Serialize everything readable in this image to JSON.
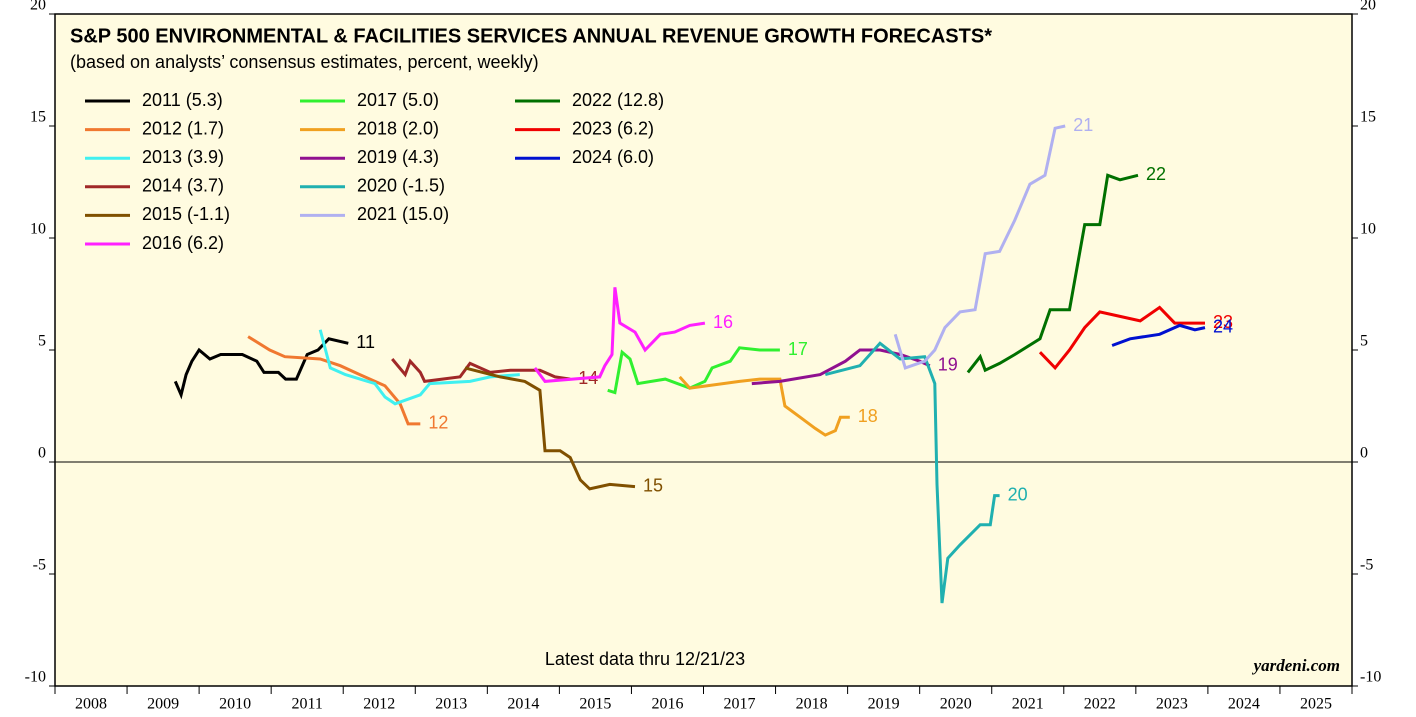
{
  "chart_data": {
    "type": "line",
    "title": "S&P 500 ENVIRONMENTAL & FACILITIES SERVICES ANNUAL REVENUE GROWTH FORECASTS*",
    "subtitle": "(based on analysts’ consensus estimates, percent, weekly)",
    "annotation": "Latest data thru 12/21/23",
    "source": "yardeni.com",
    "year_labels": [
      "2008",
      "2009",
      "2010",
      "2011",
      "2012",
      "2013",
      "2014",
      "2015",
      "2016",
      "2017",
      "2018",
      "2019",
      "2020",
      "2021",
      "2022",
      "2023",
      "2024",
      "2025"
    ],
    "xlim": [
      2008,
      2026
    ],
    "ylim": [
      -10,
      20
    ],
    "yticks": [
      -10,
      -5,
      0,
      5,
      10,
      15,
      20
    ],
    "series": [
      {
        "name": "2011 (5.3)",
        "end_label": "11",
        "color": "#000000",
        "x": [
          2009.67,
          2009.75,
          2009.82,
          2009.9,
          2010.0,
          2010.15,
          2010.3,
          2010.6,
          2010.8,
          2010.9,
          2011.1,
          2011.2,
          2011.35,
          2011.5,
          2011.65,
          2011.8,
          2012.07
        ],
        "values": [
          3.6,
          3.0,
          3.9,
          4.5,
          5.0,
          4.6,
          4.8,
          4.8,
          4.5,
          4.0,
          4.0,
          3.7,
          3.7,
          4.8,
          5.0,
          5.5,
          5.3
        ]
      },
      {
        "name": "2012 (1.7)",
        "end_label": "12",
        "color": "#f07830",
        "x": [
          2010.68,
          2010.98,
          2011.19,
          2011.68,
          2011.96,
          2012.23,
          2012.58,
          2012.79,
          2012.9,
          2013.07
        ],
        "values": [
          5.6,
          5.0,
          4.7,
          4.6,
          4.3,
          3.9,
          3.4,
          2.6,
          1.7,
          1.7
        ]
      },
      {
        "name": "2013 (3.9)",
        "color": "#40f0f0",
        "x": [
          2011.68,
          2011.82,
          2012.03,
          2012.44,
          2012.58,
          2012.72,
          2013.07,
          2013.2,
          2013.76,
          2014.04,
          2014.45
        ],
        "values": [
          5.9,
          4.2,
          3.9,
          3.5,
          2.9,
          2.6,
          3.0,
          3.5,
          3.6,
          3.8,
          3.9
        ]
      },
      {
        "name": "2014 (3.7)",
        "end_label": "14",
        "color": "#a02828",
        "x": [
          2012.68,
          2012.86,
          2012.93,
          2013.07,
          2013.13,
          2013.62,
          2013.76,
          2014.04,
          2014.32,
          2014.73,
          2014.94,
          2015.15
        ],
        "values": [
          4.6,
          3.9,
          4.5,
          4.0,
          3.6,
          3.8,
          4.4,
          4.0,
          4.1,
          4.1,
          3.8,
          3.7
        ]
      },
      {
        "name": "2015 (-1.1)",
        "end_label": "15",
        "color": "#805000",
        "x": [
          2013.69,
          2014.18,
          2014.52,
          2014.73,
          2014.8,
          2015.01,
          2015.15,
          2015.29,
          2015.42,
          2015.7,
          2016.05
        ],
        "values": [
          4.2,
          3.8,
          3.6,
          3.2,
          0.5,
          0.5,
          0.2,
          -0.8,
          -1.2,
          -1.0,
          -1.1
        ]
      },
      {
        "name": "2016 (6.2)",
        "end_label": "16",
        "color": "#ff20ff",
        "x": [
          2014.66,
          2014.8,
          2015.56,
          2015.63,
          2015.73,
          2015.77,
          2015.84,
          2016.05,
          2016.19,
          2016.4,
          2016.6,
          2016.81,
          2017.02
        ],
        "values": [
          4.2,
          3.6,
          3.8,
          4.3,
          4.8,
          7.8,
          6.2,
          5.8,
          5.0,
          5.7,
          5.8,
          6.1,
          6.2
        ]
      },
      {
        "name": "2017 (5.0)",
        "end_label": "17",
        "color": "#30f030",
        "x": [
          2015.67,
          2015.77,
          2015.87,
          2015.98,
          2016.09,
          2016.47,
          2016.81,
          2017.02,
          2017.12,
          2017.37,
          2017.5,
          2017.78,
          2018.06
        ],
        "values": [
          3.2,
          3.1,
          4.9,
          4.6,
          3.5,
          3.7,
          3.3,
          3.6,
          4.2,
          4.5,
          5.1,
          5.0,
          5.0
        ]
      },
      {
        "name": "2018 (2.0)",
        "end_label": "18",
        "color": "#f0a020",
        "x": [
          2016.67,
          2016.81,
          2017.5,
          2017.78,
          2018.06,
          2018.13,
          2018.34,
          2018.55,
          2018.69,
          2018.83,
          2018.9,
          2019.03
        ],
        "values": [
          3.8,
          3.3,
          3.6,
          3.7,
          3.7,
          2.5,
          2.0,
          1.5,
          1.2,
          1.4,
          2.0,
          2.0
        ]
      },
      {
        "name": "2019 (4.3)",
        "end_label": "19",
        "color": "#901090",
        "x": [
          2017.67,
          2018.06,
          2018.62,
          2018.97,
          2019.17,
          2019.45,
          2019.73,
          2020.0,
          2020.14
        ],
        "values": [
          3.5,
          3.6,
          3.9,
          4.5,
          5.0,
          5.0,
          4.8,
          4.5,
          4.3
        ]
      },
      {
        "name": "2020 (-1.5)",
        "end_label": "20",
        "color": "#20b0b0",
        "x": [
          2018.69,
          2019.17,
          2019.45,
          2019.73,
          2020.07,
          2020.21,
          2020.24,
          2020.31,
          2020.39,
          2020.56,
          2020.84,
          2020.98,
          2021.04,
          2021.11
        ],
        "values": [
          3.9,
          4.3,
          5.3,
          4.6,
          4.7,
          3.5,
          -1.0,
          -6.3,
          -4.3,
          -3.7,
          -2.8,
          -2.8,
          -1.5,
          -1.5
        ]
      },
      {
        "name": "2021 (15.0)",
        "end_label": "21",
        "color": "#b0b0f0",
        "x": [
          2019.66,
          2019.8,
          2020.07,
          2020.21,
          2020.35,
          2020.56,
          2020.77,
          2020.91,
          2021.11,
          2021.32,
          2021.53,
          2021.74,
          2021.88,
          2022.02
        ],
        "values": [
          5.7,
          4.2,
          4.5,
          5.0,
          6.0,
          6.7,
          6.8,
          9.3,
          9.4,
          10.8,
          12.4,
          12.8,
          14.9,
          15.0
        ]
      },
      {
        "name": "2022 (12.8)",
        "end_label": "22",
        "color": "#007000",
        "x": [
          2020.67,
          2020.84,
          2020.91,
          2021.11,
          2021.32,
          2021.67,
          2021.81,
          2022.08,
          2022.29,
          2022.5,
          2022.61,
          2022.78,
          2023.03
        ],
        "values": [
          4.0,
          4.7,
          4.1,
          4.4,
          4.8,
          5.5,
          6.8,
          6.8,
          10.6,
          10.6,
          12.8,
          12.6,
          12.8
        ]
      },
      {
        "name": "2023 (6.2)",
        "end_label": "23",
        "color": "#f00000",
        "x": [
          2021.67,
          2021.88,
          2022.08,
          2022.29,
          2022.5,
          2022.78,
          2023.06,
          2023.33,
          2023.54,
          2023.75,
          2023.96
        ],
        "values": [
          4.9,
          4.2,
          5.0,
          6.0,
          6.7,
          6.5,
          6.3,
          6.9,
          6.2,
          6.2,
          6.2
        ]
      },
      {
        "name": "2024 (6.0)",
        "end_label": "24",
        "color": "#0010d0",
        "x": [
          2022.67,
          2022.92,
          2023.33,
          2023.61,
          2023.82,
          2023.96
        ],
        "values": [
          5.2,
          5.5,
          5.7,
          6.1,
          5.9,
          6.0
        ]
      }
    ]
  }
}
